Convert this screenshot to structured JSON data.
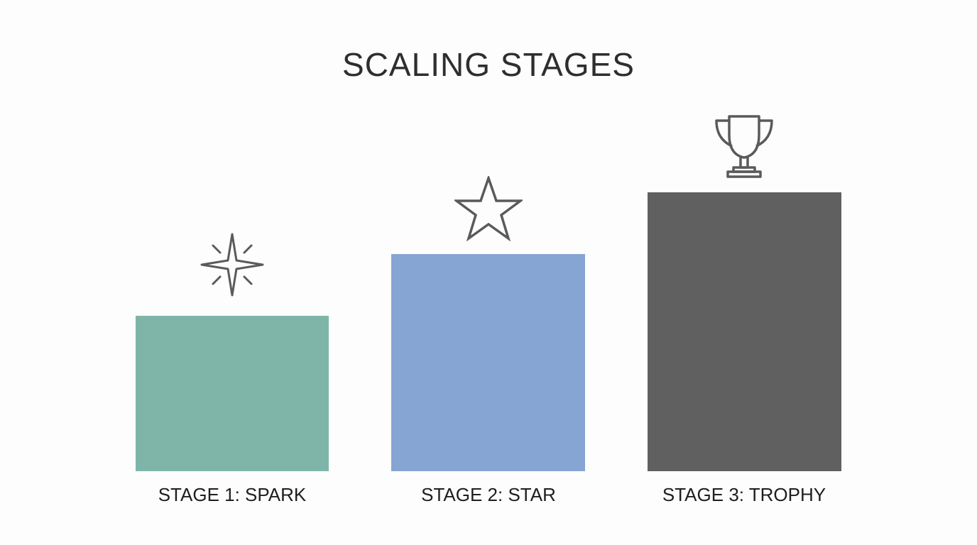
{
  "title": "SCALING STAGES",
  "stages": [
    {
      "label": "STAGE 1: SPARK",
      "icon": "sparkle-icon",
      "color": "#7fb5a8"
    },
    {
      "label": "STAGE 2: STAR",
      "icon": "star-icon",
      "color": "#86a5d3"
    },
    {
      "label": "STAGE 3: TROPHY",
      "icon": "trophy-icon",
      "color": "#606060"
    }
  ],
  "icon_color": "#5a5a5a"
}
